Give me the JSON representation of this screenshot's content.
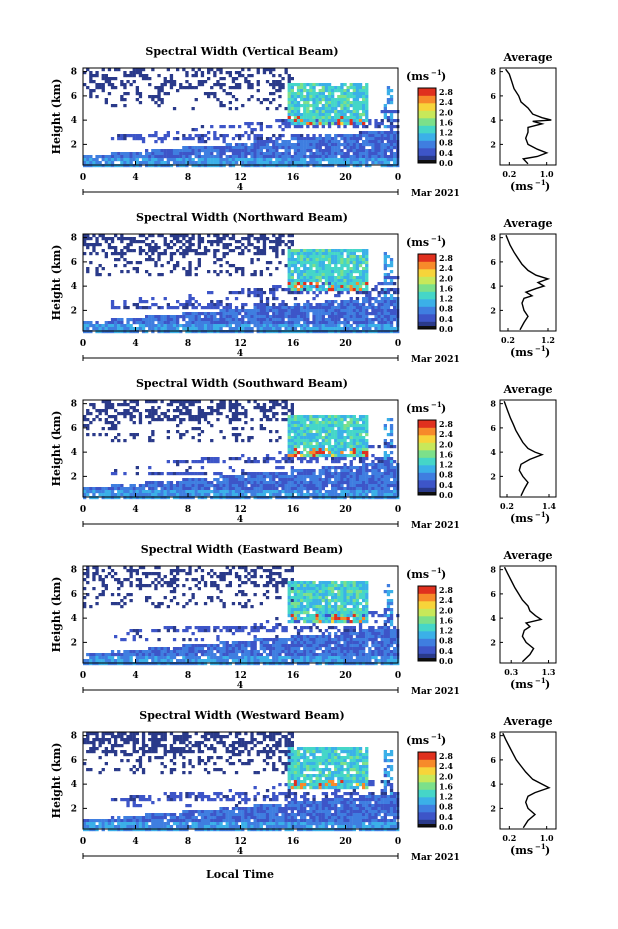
{
  "figure": {
    "xlabel": "Local Time",
    "date_label": "Mar 2021",
    "x_ticks": [
      "0",
      "4",
      "8",
      "12",
      "16",
      "20",
      "0"
    ],
    "date_tick": "4",
    "ylabel": "Height (km)",
    "y_ticks": [
      "2",
      "4",
      "6",
      "8"
    ],
    "unit_label": "(ms",
    "unit_exp": "−1",
    "colorbar_ticks": [
      "0.0",
      "0.4",
      "0.8",
      "1.2",
      "1.6",
      "2.0",
      "2.4",
      "2.8"
    ],
    "average_title": "Average",
    "average_y_ticks": [
      "2",
      "4",
      "6",
      "8"
    ],
    "colorscale": [
      "#2a3a8a",
      "#3d55c8",
      "#3f7ee0",
      "#3bb0e8",
      "#45d6c8",
      "#7ce08a",
      "#c8e85a",
      "#f7d43a",
      "#f78a2a",
      "#e0301e"
    ],
    "accent_profile": "#000000"
  },
  "chart_data": [
    {
      "type": "heatmap",
      "title": "Spectral Width (Vertical Beam)",
      "avg_xticks": [
        "0.2",
        "1.0"
      ],
      "avg_xlim": [
        0.0,
        1.2
      ],
      "profile": [
        [
          0.6,
          0.4
        ],
        [
          0.5,
          0.8
        ],
        [
          0.8,
          1.0
        ],
        [
          1.0,
          1.3
        ],
        [
          0.8,
          1.6
        ],
        [
          0.6,
          2.0
        ],
        [
          0.55,
          2.5
        ],
        [
          0.6,
          3.0
        ],
        [
          0.6,
          3.4
        ],
        [
          0.9,
          3.7
        ],
        [
          0.7,
          3.9
        ],
        [
          1.1,
          4.0
        ],
        [
          0.9,
          4.2
        ],
        [
          0.7,
          4.5
        ],
        [
          0.6,
          5.0
        ],
        [
          0.45,
          5.5
        ],
        [
          0.4,
          6.0
        ],
        [
          0.3,
          6.6
        ],
        [
          0.25,
          7.2
        ],
        [
          0.2,
          7.8
        ],
        [
          0.12,
          8.2
        ]
      ]
    },
    {
      "type": "heatmap",
      "title": "Spectral Width (Northward Beam)",
      "avg_xticks": [
        "0.2",
        "1.2"
      ],
      "avg_xlim": [
        0.0,
        1.4
      ],
      "profile": [
        [
          0.5,
          0.4
        ],
        [
          0.6,
          1.0
        ],
        [
          0.7,
          1.5
        ],
        [
          0.6,
          2.0
        ],
        [
          0.55,
          2.6
        ],
        [
          0.6,
          3.0
        ],
        [
          0.8,
          3.2
        ],
        [
          0.65,
          3.5
        ],
        [
          0.9,
          3.8
        ],
        [
          1.1,
          4.0
        ],
        [
          0.95,
          4.3
        ],
        [
          1.2,
          4.6
        ],
        [
          0.9,
          4.9
        ],
        [
          0.7,
          5.3
        ],
        [
          0.55,
          5.8
        ],
        [
          0.45,
          6.3
        ],
        [
          0.35,
          6.8
        ],
        [
          0.25,
          7.4
        ],
        [
          0.15,
          8.2
        ]
      ]
    },
    {
      "type": "heatmap",
      "title": "Spectral Width (Southward Beam)",
      "avg_xticks": [
        "0.2",
        "1.4"
      ],
      "avg_xlim": [
        0.0,
        1.6
      ],
      "profile": [
        [
          0.6,
          0.4
        ],
        [
          0.7,
          1.0
        ],
        [
          0.8,
          1.5
        ],
        [
          0.65,
          2.0
        ],
        [
          0.55,
          2.5
        ],
        [
          0.6,
          3.0
        ],
        [
          0.85,
          3.4
        ],
        [
          1.2,
          3.8
        ],
        [
          1.0,
          4.0
        ],
        [
          0.8,
          4.3
        ],
        [
          0.65,
          4.8
        ],
        [
          0.55,
          5.3
        ],
        [
          0.45,
          5.8
        ],
        [
          0.38,
          6.3
        ],
        [
          0.3,
          6.8
        ],
        [
          0.22,
          7.4
        ],
        [
          0.12,
          8.2
        ]
      ]
    },
    {
      "type": "heatmap",
      "title": "Spectral Width (Eastward Beam)",
      "avg_xticks": [
        "0.3",
        "1.3"
      ],
      "avg_xlim": [
        0.0,
        1.5
      ],
      "profile": [
        [
          0.6,
          0.4
        ],
        [
          0.8,
          1.0
        ],
        [
          0.9,
          1.5
        ],
        [
          0.7,
          2.0
        ],
        [
          0.6,
          2.5
        ],
        [
          0.65,
          3.0
        ],
        [
          0.8,
          3.3
        ],
        [
          0.7,
          3.6
        ],
        [
          1.1,
          3.9
        ],
        [
          0.95,
          4.2
        ],
        [
          0.8,
          4.6
        ],
        [
          0.75,
          5.0
        ],
        [
          0.6,
          5.5
        ],
        [
          0.5,
          6.0
        ],
        [
          0.4,
          6.5
        ],
        [
          0.3,
          7.1
        ],
        [
          0.2,
          7.7
        ],
        [
          0.12,
          8.2
        ]
      ]
    },
    {
      "type": "heatmap",
      "title": "Spectral Width (Westward Beam)",
      "avg_xticks": [
        "0.2",
        "1.0"
      ],
      "avg_xlim": [
        0.0,
        1.2
      ],
      "profile": [
        [
          0.5,
          0.4
        ],
        [
          0.6,
          1.0
        ],
        [
          0.75,
          1.5
        ],
        [
          0.6,
          2.0
        ],
        [
          0.55,
          2.5
        ],
        [
          0.6,
          3.0
        ],
        [
          0.75,
          3.3
        ],
        [
          1.05,
          3.7
        ],
        [
          0.9,
          4.0
        ],
        [
          0.7,
          4.4
        ],
        [
          0.55,
          5.0
        ],
        [
          0.45,
          5.5
        ],
        [
          0.35,
          6.0
        ],
        [
          0.28,
          6.5
        ],
        [
          0.2,
          7.1
        ],
        [
          0.12,
          7.7
        ],
        [
          0.06,
          8.2
        ]
      ]
    }
  ]
}
